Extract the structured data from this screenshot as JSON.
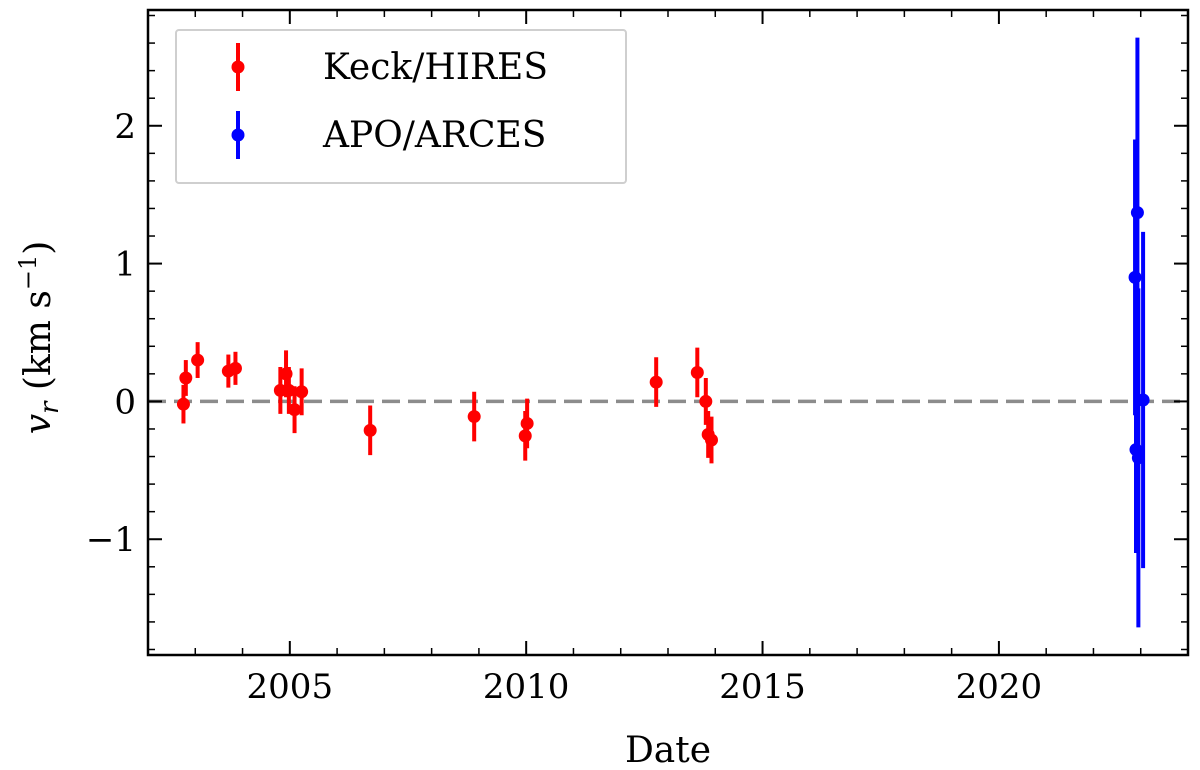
{
  "chart_data": {
    "type": "scatter",
    "title": "",
    "xlabel": "Date",
    "ylabel_main": "v",
    "ylabel_sub": "r",
    "ylabel_unit_prefix": "(km s",
    "ylabel_unit_exp": "−1",
    "ylabel_unit_suffix": ")",
    "xlim": [
      2002.0,
      2024.0
    ],
    "ylim": [
      -1.84,
      2.84
    ],
    "xticks": [
      2005,
      2010,
      2015,
      2020
    ],
    "xtick_labels": [
      "2005",
      "2010",
      "2015",
      "2020"
    ],
    "yticks": [
      -1,
      0,
      1,
      2
    ],
    "ytick_labels": [
      "−1",
      "0",
      "1",
      "2"
    ],
    "reference_line_y": 0,
    "grid": false,
    "legend_position": "top-left",
    "series": [
      {
        "name": "Keck/HIRES",
        "color": "#ff0000",
        "points": [
          {
            "x": 2002.75,
            "y": -0.02,
            "err": 0.14
          },
          {
            "x": 2002.8,
            "y": 0.17,
            "err": 0.13
          },
          {
            "x": 2003.05,
            "y": 0.3,
            "err": 0.13
          },
          {
            "x": 2003.7,
            "y": 0.22,
            "err": 0.12
          },
          {
            "x": 2003.85,
            "y": 0.24,
            "err": 0.12
          },
          {
            "x": 2004.8,
            "y": 0.08,
            "err": 0.17
          },
          {
            "x": 2004.92,
            "y": 0.2,
            "err": 0.17
          },
          {
            "x": 2004.98,
            "y": 0.08,
            "err": 0.17
          },
          {
            "x": 2005.1,
            "y": -0.06,
            "err": 0.17
          },
          {
            "x": 2005.25,
            "y": 0.07,
            "err": 0.17
          },
          {
            "x": 2006.7,
            "y": -0.21,
            "err": 0.18
          },
          {
            "x": 2008.9,
            "y": -0.11,
            "err": 0.18
          },
          {
            "x": 2009.98,
            "y": -0.25,
            "err": 0.18
          },
          {
            "x": 2010.02,
            "y": -0.16,
            "err": 0.18
          },
          {
            "x": 2012.75,
            "y": 0.14,
            "err": 0.18
          },
          {
            "x": 2013.62,
            "y": 0.21,
            "err": 0.18
          },
          {
            "x": 2013.8,
            "y": 0.0,
            "err": 0.17
          },
          {
            "x": 2013.85,
            "y": -0.24,
            "err": 0.17
          },
          {
            "x": 2013.92,
            "y": -0.28,
            "err": 0.17
          }
        ]
      },
      {
        "name": "APO/ARCES",
        "color": "#0000ff",
        "points": [
          {
            "x": 2022.88,
            "y": 0.9,
            "err": 1.0
          },
          {
            "x": 2022.9,
            "y": -0.35,
            "err": 0.75
          },
          {
            "x": 2022.93,
            "y": 1.37,
            "err": 1.27
          },
          {
            "x": 2022.95,
            "y": -0.41,
            "err": 1.23
          },
          {
            "x": 2023.05,
            "y": 0.01,
            "err": 1.22
          }
        ]
      }
    ]
  }
}
